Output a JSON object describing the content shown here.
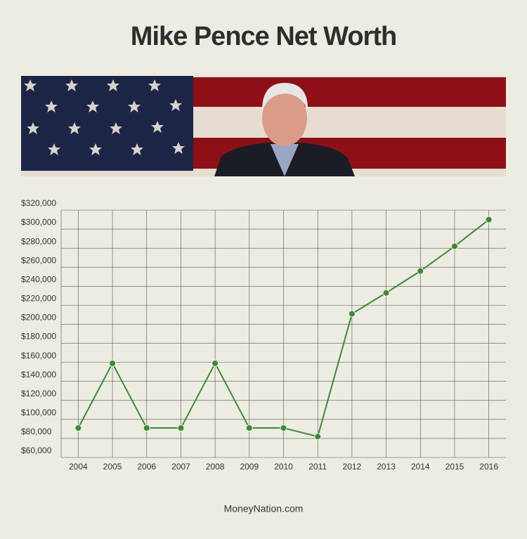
{
  "chart_data": {
    "type": "line",
    "title": "Mike Pence Net Worth",
    "source": "MoneyNation.com",
    "categories": [
      "2004",
      "2005",
      "2006",
      "2007",
      "2008",
      "2009",
      "2010",
      "2011",
      "2012",
      "2013",
      "2014",
      "2015",
      "2016"
    ],
    "values": [
      91000,
      159000,
      91000,
      91000,
      159000,
      91000,
      91000,
      82000,
      211000,
      233000,
      256000,
      282000,
      310000
    ],
    "color": "#3a8a35",
    "ylim": [
      60000,
      320000
    ],
    "yticks": [
      {
        "value": 60000,
        "label": "$60,000"
      },
      {
        "value": 80000,
        "label": "$80,000"
      },
      {
        "value": 100000,
        "label": "$100,000"
      },
      {
        "value": 120000,
        "label": "$120,000"
      },
      {
        "value": 140000,
        "label": "$140,000"
      },
      {
        "value": 160000,
        "label": "$160,000"
      },
      {
        "value": 180000,
        "label": "$180,000"
      },
      {
        "value": 200000,
        "label": "$200,000"
      },
      {
        "value": 220000,
        "label": "$220,000"
      },
      {
        "value": 240000,
        "label": "$240,000"
      },
      {
        "value": 260000,
        "label": "$260,000"
      },
      {
        "value": 280000,
        "label": "$280,000"
      },
      {
        "value": 300000,
        "label": "$300,000"
      },
      {
        "value": 320000,
        "label": "$320,000"
      }
    ],
    "grid": true
  }
}
